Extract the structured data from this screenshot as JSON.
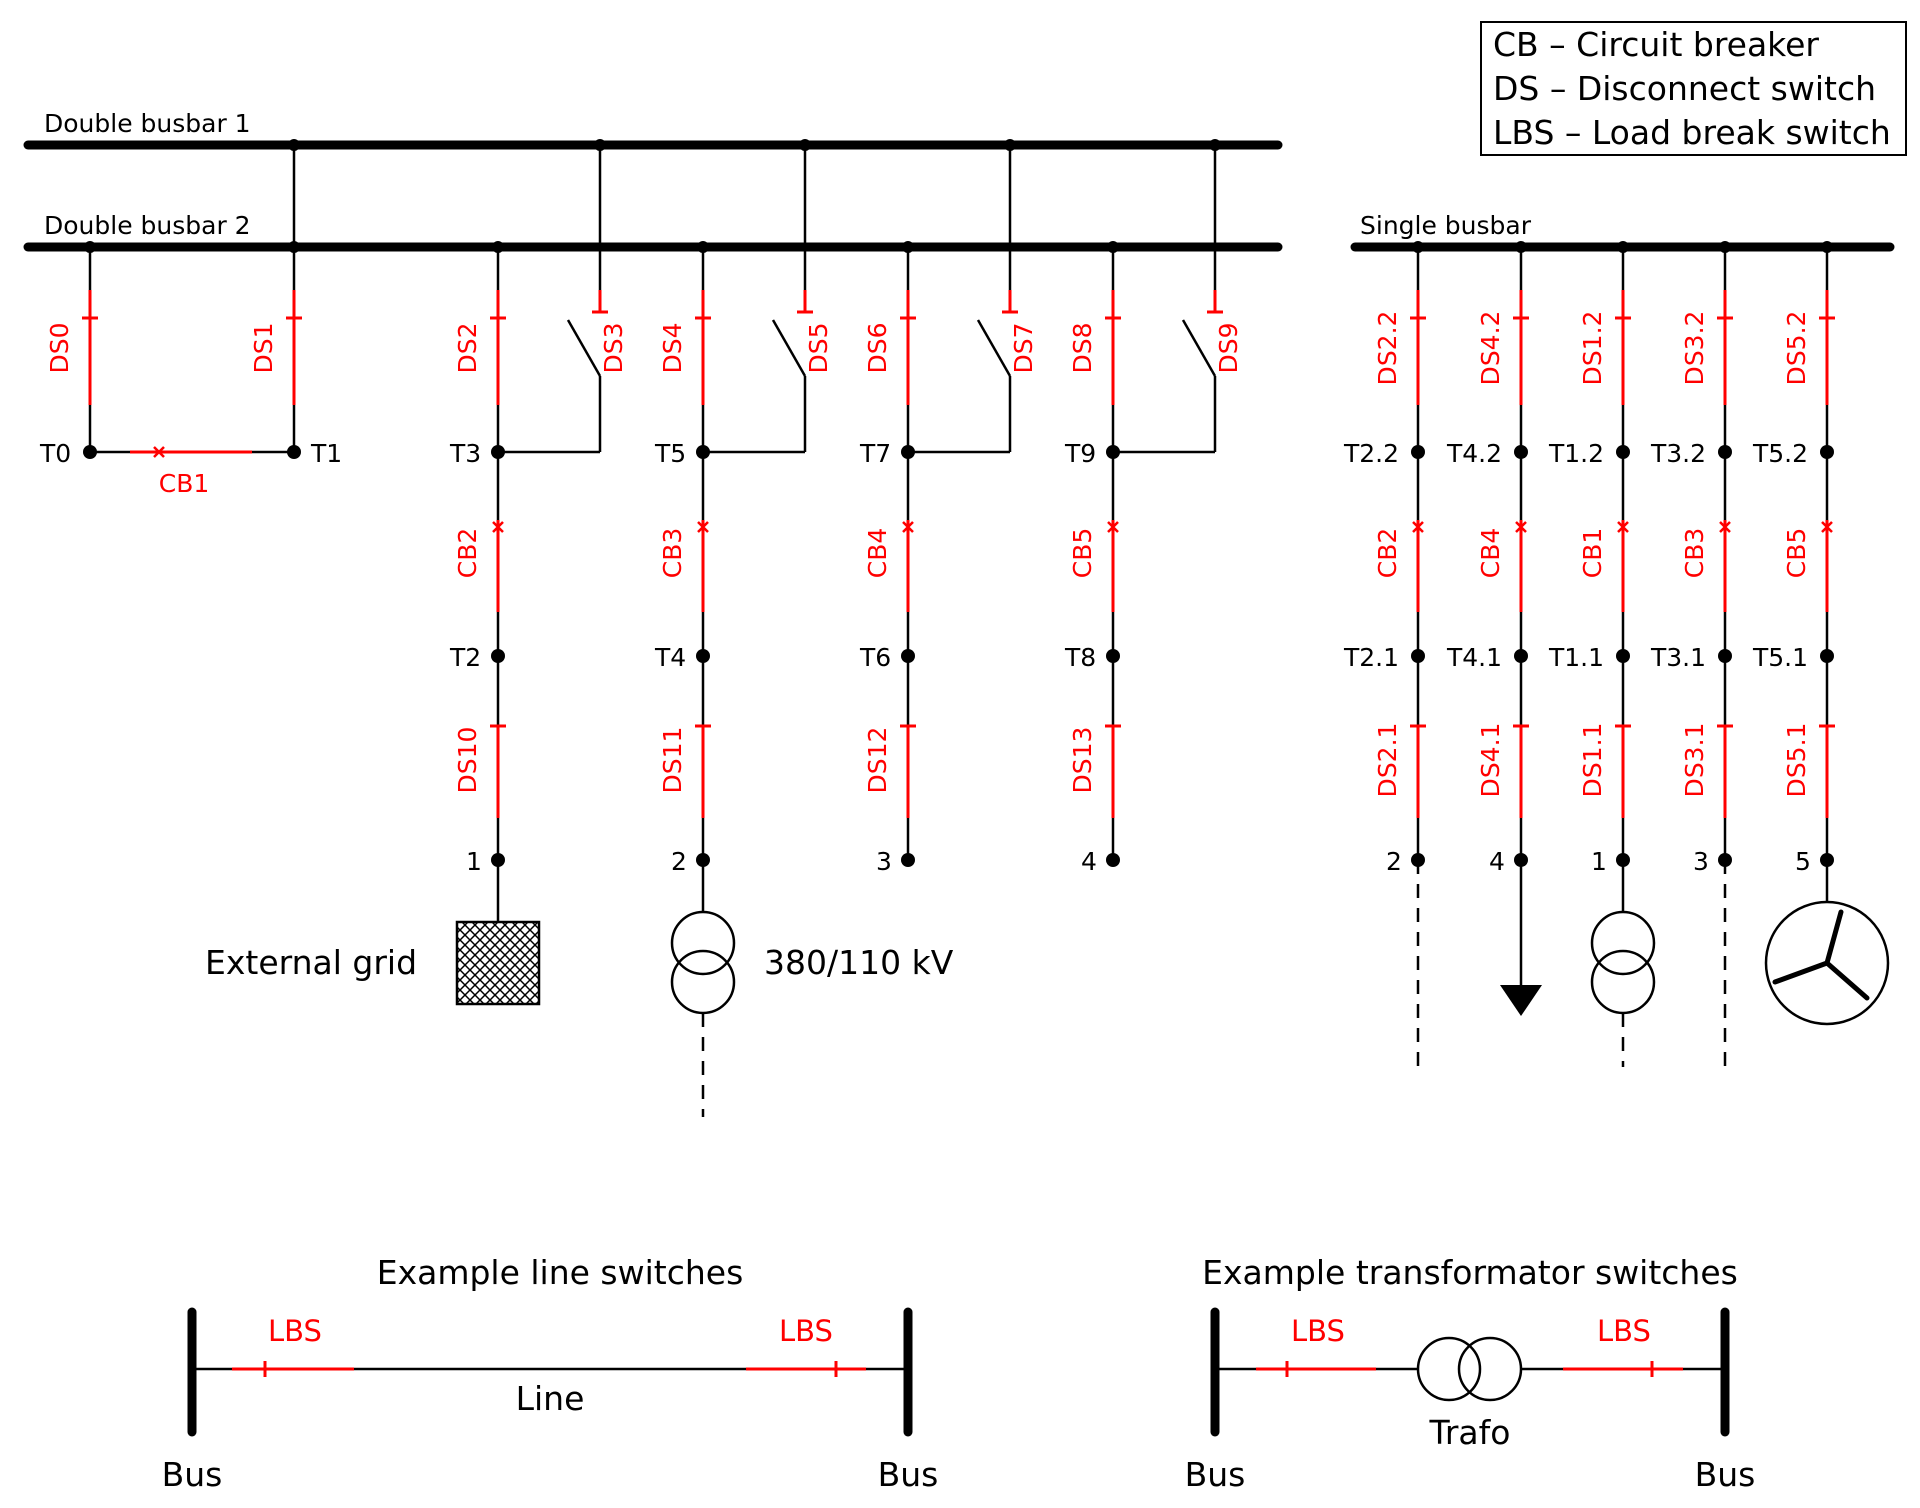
{
  "legend": {
    "line1": "CB – Circuit breaker",
    "line2": "DS – Disconnect switch",
    "line3": "LBS – Load break switch"
  },
  "busbars": {
    "double1": "Double busbar 1",
    "double2": "Double busbar 2",
    "single": "Single busbar"
  },
  "coupler": {
    "ds_left": "DS0",
    "ds_right": "DS1",
    "node_left": "T0",
    "node_right": "T1",
    "cb": "CB1"
  },
  "double_bays": [
    {
      "ds_top": "DS2",
      "ds_alt": "DS3",
      "node_upper": "T3",
      "cb": "CB2",
      "node_lower": "T2",
      "ds_bottom": "DS10",
      "terminal": "1"
    },
    {
      "ds_top": "DS4",
      "ds_alt": "DS5",
      "node_upper": "T5",
      "cb": "CB3",
      "node_lower": "T4",
      "ds_bottom": "DS11",
      "terminal": "2"
    },
    {
      "ds_top": "DS6",
      "ds_alt": "DS7",
      "node_upper": "T7",
      "cb": "CB4",
      "node_lower": "T6",
      "ds_bottom": "DS12",
      "terminal": "3"
    },
    {
      "ds_top": "DS8",
      "ds_alt": "DS9",
      "node_upper": "T9",
      "cb": "CB5",
      "node_lower": "T8",
      "ds_bottom": "DS13",
      "terminal": "4"
    }
  ],
  "single_bays": [
    {
      "ds_top": "DS2.2",
      "node_upper": "T2.2",
      "cb": "CB2",
      "node_lower": "T2.1",
      "ds_bottom": "DS2.1",
      "terminal": "2",
      "end": "dashed"
    },
    {
      "ds_top": "DS4.2",
      "node_upper": "T4.2",
      "cb": "CB4",
      "node_lower": "T4.1",
      "ds_bottom": "DS4.1",
      "terminal": "4",
      "end": "load-arrow"
    },
    {
      "ds_top": "DS1.2",
      "node_upper": "T1.2",
      "cb": "CB1",
      "node_lower": "T1.1",
      "ds_bottom": "DS1.1",
      "terminal": "1",
      "end": "transformer"
    },
    {
      "ds_top": "DS3.2",
      "node_upper": "T3.2",
      "cb": "CB3",
      "node_lower": "T3.1",
      "ds_bottom": "DS3.1",
      "terminal": "3",
      "end": "dashed"
    },
    {
      "ds_top": "DS5.2",
      "node_upper": "T5.2",
      "cb": "CB5",
      "node_lower": "T5.1",
      "ds_bottom": "DS5.1",
      "terminal": "5",
      "end": "generator"
    }
  ],
  "equipment": {
    "external_grid": "External grid",
    "transformer": "380/110 kV"
  },
  "examples": {
    "line_title": "Example line switches",
    "line_lbs_left": "LBS",
    "line_lbs_right": "LBS",
    "line_label": "Line",
    "line_bus_left": "Bus",
    "line_bus_right": "Bus",
    "trafo_title": "Example transformator switches",
    "trafo_lbs_left": "LBS",
    "trafo_lbs_right": "LBS",
    "trafo_label": "Trafo",
    "trafo_bus_left": "Bus",
    "trafo_bus_right": "Bus"
  },
  "colors": {
    "switch": "#ff0000",
    "wire": "#000000"
  }
}
